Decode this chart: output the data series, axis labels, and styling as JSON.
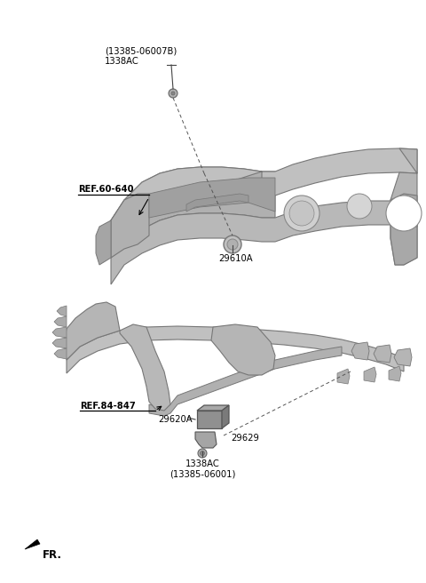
{
  "bg_color": "#ffffff",
  "fig_width": 4.8,
  "fig_height": 6.56,
  "dpi": 100,
  "text_color": "#000000",
  "part1_label1": "(13385-06007B)",
  "part1_label2": "1338AC",
  "ref1_label": "REF.60-640",
  "part2_label": "29610A",
  "ref2_label": "REF.84-847",
  "part3_label": "29620A",
  "part4_label": "29629",
  "part5_label1": "1338AC",
  "part5_label2": "(13385-06001)",
  "fr_label": "FR."
}
